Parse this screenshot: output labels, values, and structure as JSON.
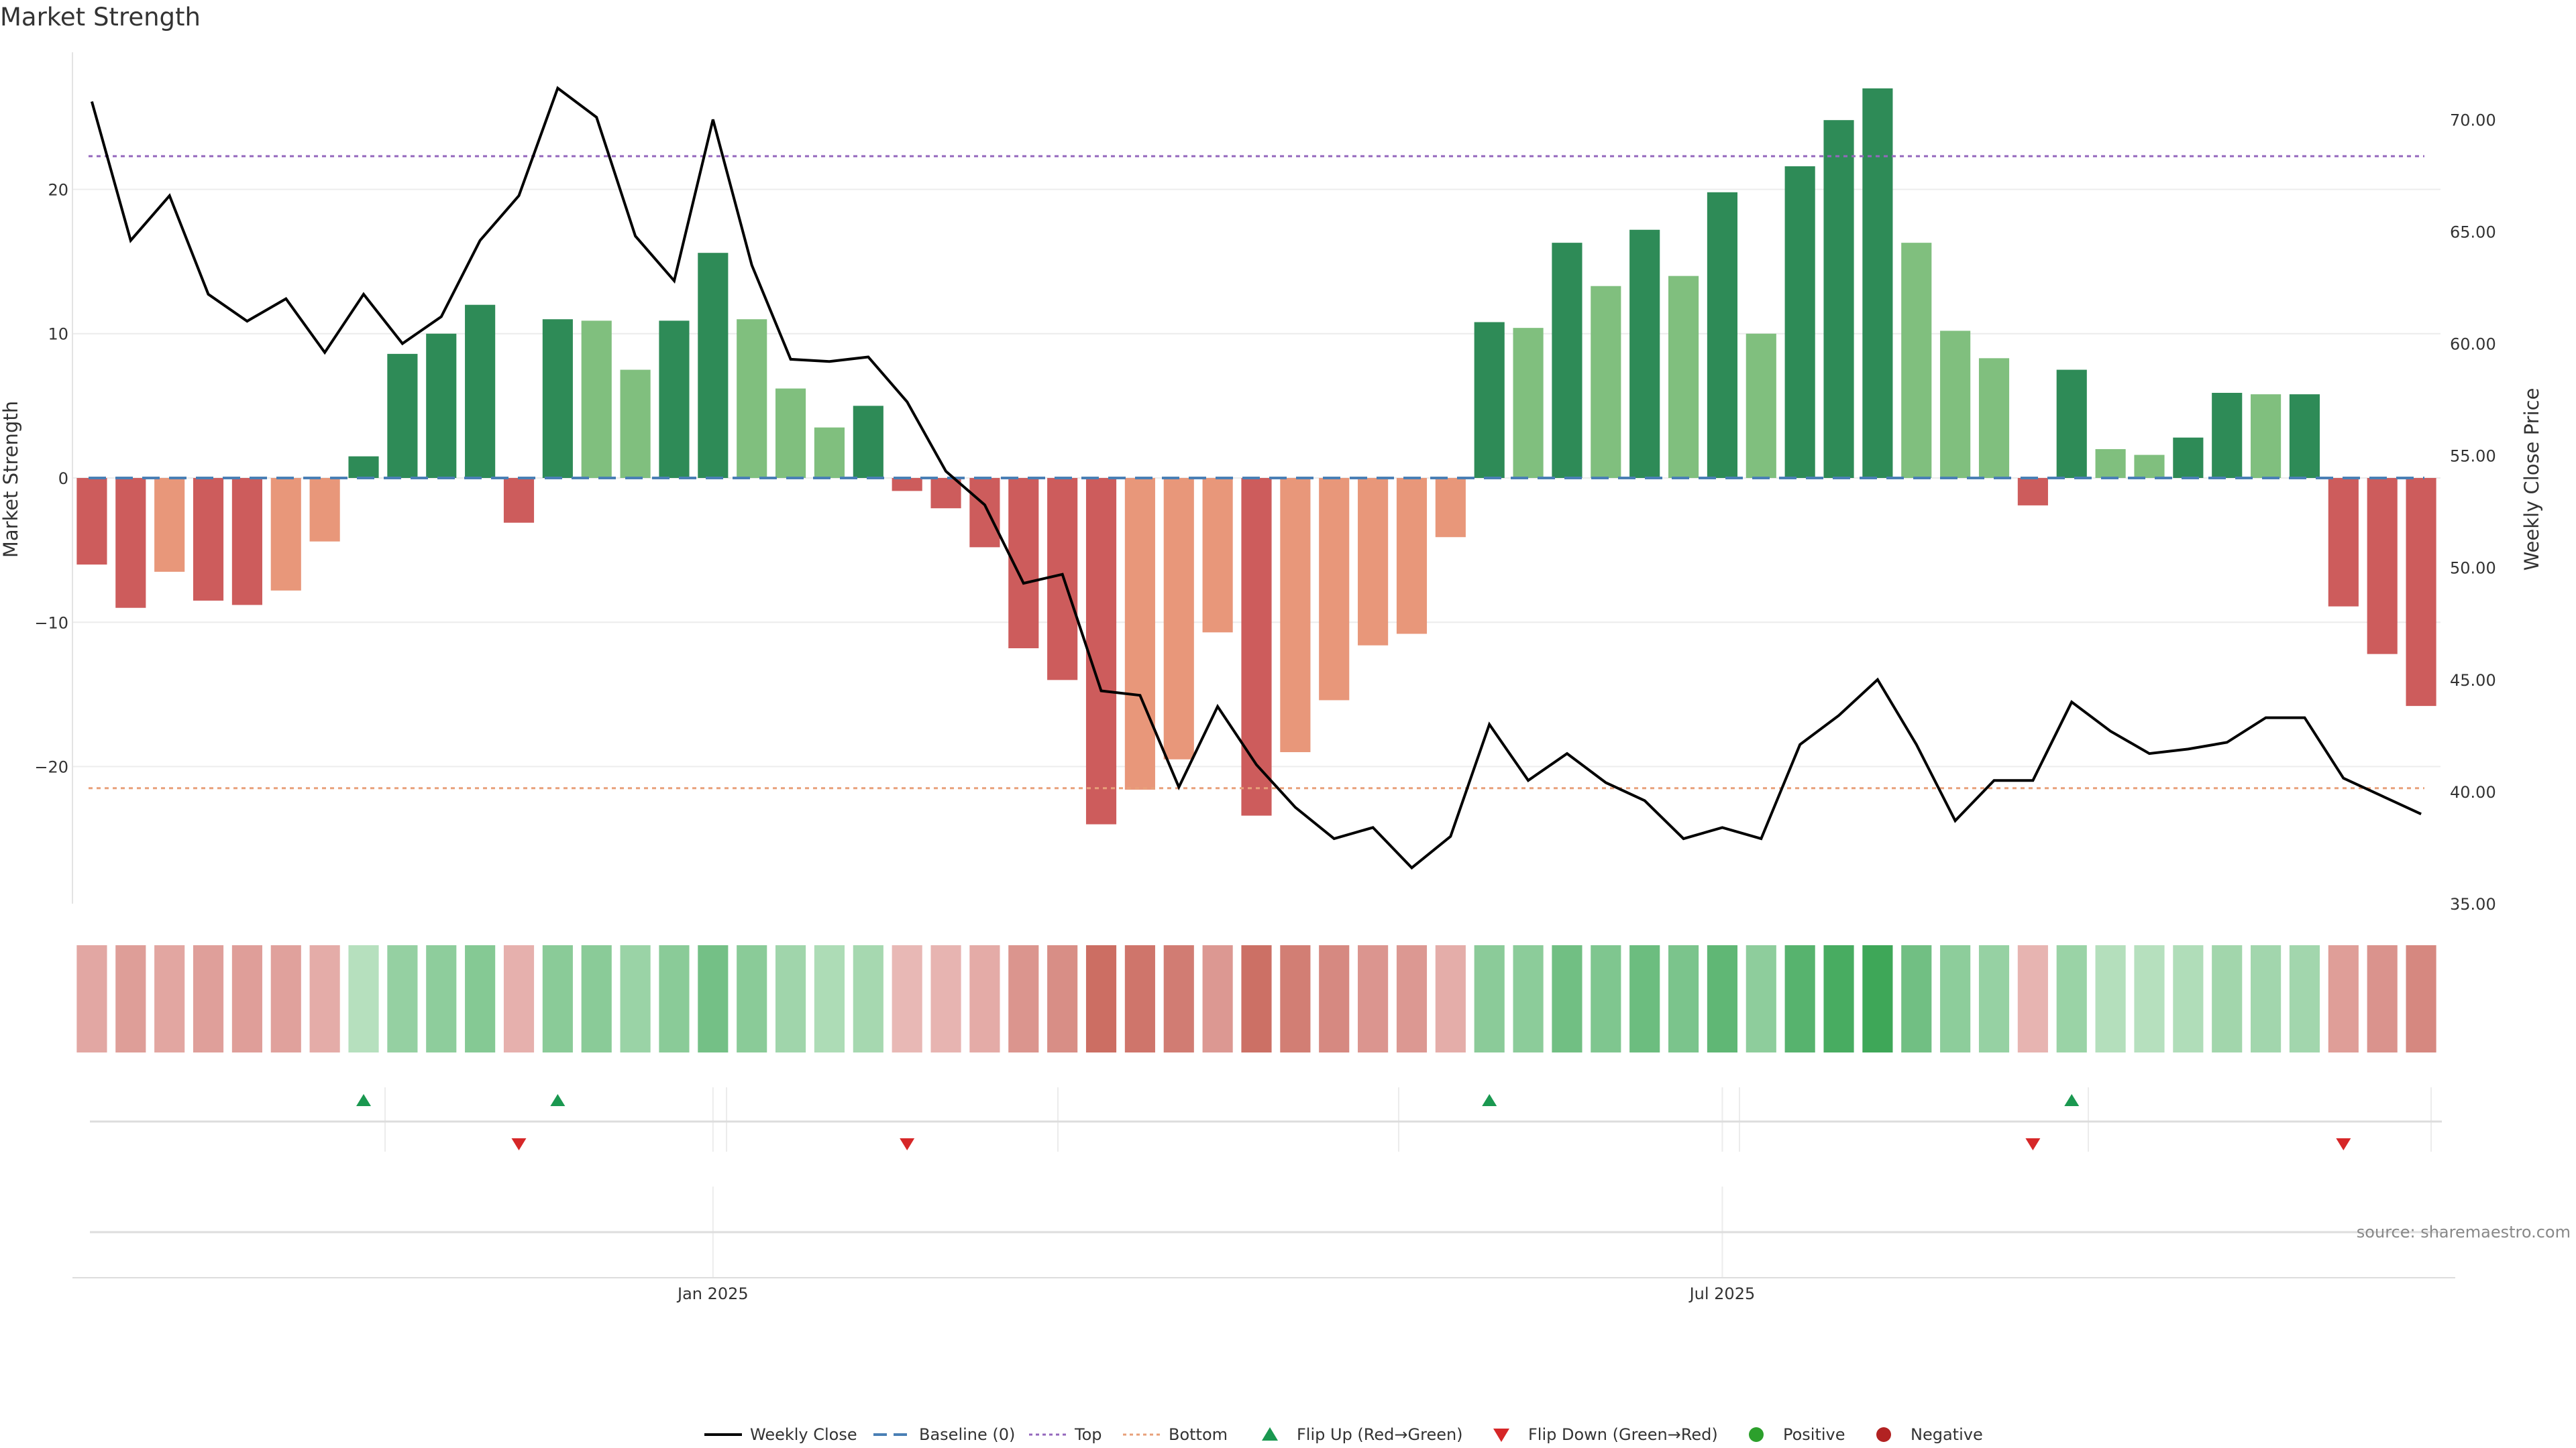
{
  "chart_data": {
    "type": "bar",
    "title": "Market Strength",
    "ylabel_left": "Market Strength",
    "ylabel_right": "Weekly Close Price",
    "ylim_left": [
      -29.5,
      29.5
    ],
    "ylim_right": [
      35,
      73
    ],
    "yticks_left": [
      20,
      10,
      0,
      -10,
      -20
    ],
    "yticks_right": [
      "70.00",
      "65.00",
      "60.00",
      "55.00",
      "50.00",
      "45.00",
      "40.00",
      "35.00"
    ],
    "x_tick_labels": [
      {
        "label": "Jan 2025",
        "week_index": 16.5
      },
      {
        "label": "Jul 2025",
        "week_index": 42.5
      }
    ],
    "top_level": 22.3,
    "bottom_level": -21.5,
    "baseline": 0,
    "strength": [
      -6.0,
      -9.0,
      -6.5,
      -8.5,
      -8.8,
      -7.8,
      -4.4,
      1.5,
      8.6,
      10.0,
      12.0,
      -3.1,
      11.0,
      10.9,
      7.5,
      10.9,
      15.6,
      11.0,
      6.2,
      3.5,
      5.0,
      -0.9,
      -2.1,
      -4.8,
      -11.8,
      -14.0,
      -24.0,
      -21.6,
      -19.5,
      -10.7,
      -23.4,
      -19.0,
      -15.4,
      -11.6,
      -10.8,
      -4.1,
      10.8,
      10.4,
      16.3,
      13.3,
      17.2,
      14.0,
      19.8,
      10.0,
      21.6,
      24.8,
      27.0,
      16.3,
      10.2,
      8.3,
      -1.9,
      7.5,
      2.0,
      1.6,
      2.8,
      5.9,
      5.8,
      5.8,
      -8.9,
      -12.2,
      -15.8
    ],
    "weekly_close": [
      70.8,
      64.6,
      66.6,
      62.2,
      61.0,
      62.0,
      59.6,
      62.2,
      60.0,
      61.2,
      64.6,
      66.6,
      71.4,
      70.1,
      64.8,
      62.8,
      70.0,
      63.5,
      59.3,
      59.2,
      59.4,
      57.4,
      54.3,
      52.8,
      49.3,
      49.7,
      44.5,
      44.3,
      40.2,
      43.8,
      41.2,
      39.3,
      37.9,
      38.4,
      36.6,
      38.0,
      43.0,
      40.5,
      41.7,
      40.4,
      39.6,
      37.9,
      38.4,
      37.9,
      42.1,
      43.4,
      45.0,
      42.1,
      38.7,
      40.5,
      40.5,
      44.0,
      42.7,
      41.7,
      41.9,
      42.2,
      43.3,
      43.3,
      40.6,
      39.8,
      39.0
    ],
    "flip_up_weeks": [
      7,
      12,
      36,
      51
    ],
    "flip_down_weeks": [
      11,
      21,
      50,
      58
    ],
    "colors": {
      "positive_strong": "#2e8b57",
      "positive_weak": "#80bf7e",
      "negative_strong": "#cd5c5c",
      "negative_weak": "#e8977a",
      "top": "#9467bd",
      "bottom": "#e8a07a",
      "baseline": "#4a7fb5",
      "flip_up": "#1a9850",
      "flip_down": "#d62728",
      "positive_dot": "#2ca02c",
      "negative_dot": "#b22222",
      "price": "#000000"
    },
    "legend": {
      "position": "bottom-center",
      "entries": [
        {
          "label": "Weekly Close",
          "kind": "line"
        },
        {
          "label": "Baseline (0)",
          "kind": "dash"
        },
        {
          "label": "Top",
          "kind": "dot-purple"
        },
        {
          "label": "Bottom",
          "kind": "dot-orange"
        },
        {
          "label": "Flip Up (Red→Green)",
          "kind": "tri-up"
        },
        {
          "label": "Flip Down (Green→Red)",
          "kind": "tri-down"
        },
        {
          "label": "Positive",
          "kind": "dot-green"
        },
        {
          "label": "Negative",
          "kind": "dot-red"
        }
      ]
    }
  },
  "source_text": "source: sharemaestro.com"
}
